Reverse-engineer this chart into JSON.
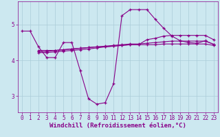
{
  "background_color": "#cce8f0",
  "grid_color": "#aaccd8",
  "line_color": "#880088",
  "xlabel": "Windchill (Refroidissement éolien,°C)",
  "xlabel_color": "#880088",
  "xlabel_fontsize": 6.5,
  "yticks": [
    3,
    4,
    5
  ],
  "xticks": [
    0,
    1,
    2,
    3,
    4,
    5,
    6,
    7,
    8,
    9,
    10,
    11,
    12,
    13,
    14,
    15,
    16,
    17,
    18,
    19,
    20,
    21,
    22,
    23
  ],
  "ylim": [
    2.55,
    5.65
  ],
  "xlim": [
    -0.5,
    23.5
  ],
  "tick_fontsize": 5.5,
  "curve1_x": [
    0,
    1,
    2,
    3,
    4,
    5,
    6,
    7,
    8,
    9,
    10,
    11,
    12,
    13,
    14,
    15,
    16,
    17,
    18,
    19,
    20,
    21,
    22,
    23
  ],
  "curve1_y": [
    4.82,
    4.82,
    4.38,
    4.08,
    4.08,
    4.5,
    4.5,
    3.72,
    2.93,
    2.78,
    2.82,
    3.35,
    5.25,
    5.42,
    5.42,
    5.42,
    5.15,
    4.9,
    4.68,
    4.55,
    4.5,
    4.48,
    4.55,
    4.45
  ],
  "curve2_x": [
    2,
    3,
    4,
    5,
    6,
    7,
    8,
    9,
    10,
    11,
    12,
    13,
    14,
    15,
    16,
    17,
    18,
    19,
    20,
    21,
    22,
    23
  ],
  "curve2_y": [
    4.28,
    4.28,
    4.28,
    4.3,
    4.32,
    4.34,
    4.36,
    4.38,
    4.38,
    4.4,
    4.42,
    4.44,
    4.44,
    4.58,
    4.62,
    4.68,
    4.7,
    4.7,
    4.7,
    4.7,
    4.7,
    4.58
  ],
  "curve3_x": [
    2,
    3,
    4,
    5,
    6,
    7,
    8,
    9,
    10,
    11,
    12,
    13,
    14,
    15,
    16,
    17,
    18,
    19,
    20,
    21,
    22,
    23
  ],
  "curve3_y": [
    4.25,
    4.25,
    4.28,
    4.3,
    4.32,
    4.34,
    4.36,
    4.38,
    4.4,
    4.42,
    4.44,
    4.46,
    4.46,
    4.48,
    4.5,
    4.52,
    4.54,
    4.54,
    4.54,
    4.54,
    4.54,
    4.45
  ],
  "curve4_x": [
    2,
    3,
    4,
    5,
    6,
    7,
    8,
    9,
    10,
    11,
    12,
    13,
    14,
    15,
    16,
    17,
    18,
    19,
    20,
    21,
    22,
    23
  ],
  "curve4_y": [
    4.22,
    4.22,
    4.24,
    4.26,
    4.28,
    4.3,
    4.32,
    4.35,
    4.38,
    4.4,
    4.42,
    4.44,
    4.44,
    4.44,
    4.44,
    4.46,
    4.46,
    4.46,
    4.46,
    4.46,
    4.46,
    4.42
  ]
}
